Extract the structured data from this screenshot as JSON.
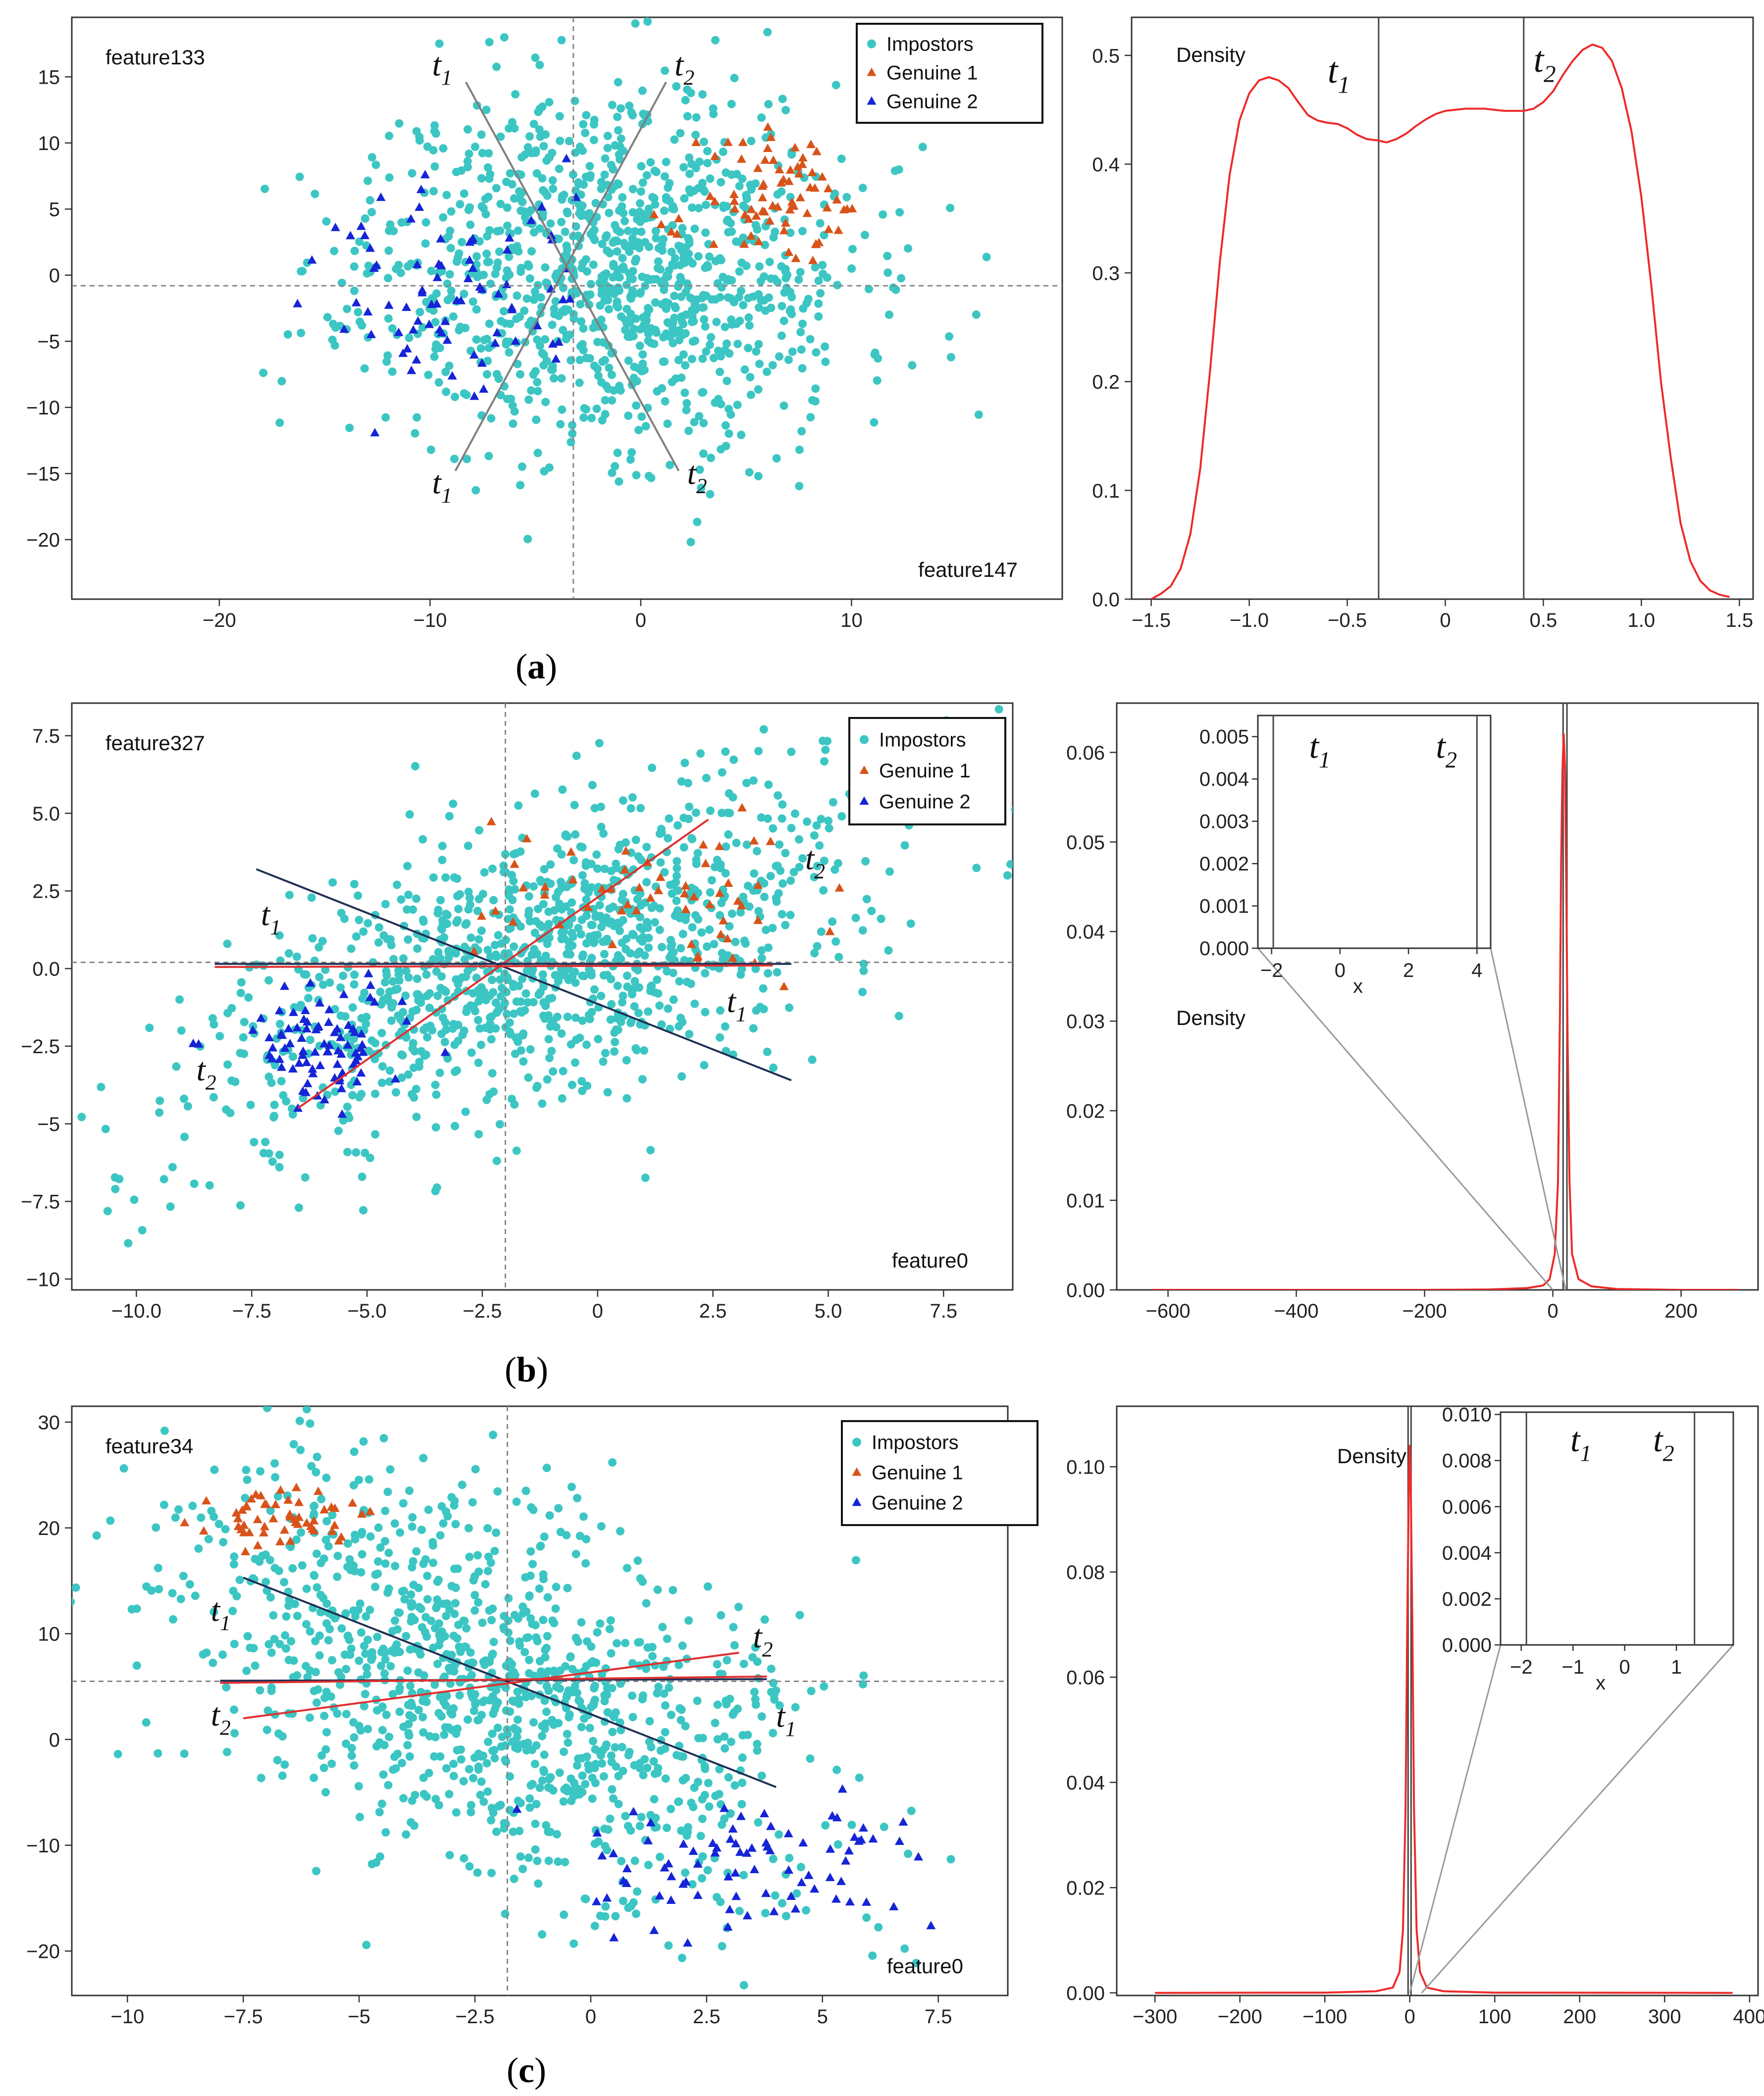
{
  "chart_data": [
    {
      "id": "a-scatter",
      "type": "scatter",
      "panel_label": "(a)",
      "xlim": [
        -27,
        20
      ],
      "ylim": [
        -24.5,
        19.5
      ],
      "xticks": [
        "−20",
        "−10",
        "0",
        "10"
      ],
      "xtick_values": [
        -20,
        -10,
        0,
        10
      ],
      "yticks": [
        "15",
        "10",
        "5",
        "0",
        "−5",
        "−10",
        "−15",
        "−20"
      ],
      "ytick_values": [
        15,
        10,
        5,
        0,
        -5,
        -10,
        -15,
        -20
      ],
      "feature_y": "feature133",
      "feature_x": "feature147",
      "center": [
        -3.2,
        -0.8
      ],
      "legend": [
        "Impostors",
        "Genuine 1",
        "Genuine 2"
      ],
      "cloud": {
        "cx": -1.5,
        "cy": 0.5,
        "sx": 5.8,
        "sy": 6.8,
        "rho": 0,
        "n": 1150,
        "seed": 11
      },
      "genuine1": {
        "cx": 6.8,
        "cy": 5.5,
        "sx": 2.0,
        "sy": 2.6,
        "n": 75,
        "seed": 21
      },
      "genuine2": {
        "cx": -9.0,
        "cy": -1.5,
        "sx": 3.4,
        "sy": 4.2,
        "n": 80,
        "seed": 31
      },
      "lines": [
        {
          "from": [
            -8.3,
            14.6
          ],
          "to": [
            1.8,
            -14.8
          ],
          "color": "#7f7f7f"
        },
        {
          "from": [
            -8.8,
            -14.8
          ],
          "to": [
            1.2,
            14.6
          ],
          "color": "#7f7f7f"
        }
      ],
      "threshold_labels": [
        {
          "sym": "t",
          "sub": "1",
          "x": -9.9,
          "y": 15.1
        },
        {
          "sym": "t",
          "sub": "2",
          "x": 1.6,
          "y": 15.1
        },
        {
          "sym": "t",
          "sub": "1",
          "x": -9.9,
          "y": -16.5
        },
        {
          "sym": "t",
          "sub": "2",
          "x": 2.2,
          "y": -15.8
        }
      ]
    },
    {
      "id": "a-density",
      "type": "line",
      "ylabel": "Density",
      "xlim": [
        -1.6,
        1.57
      ],
      "ylim": [
        0,
        0.535
      ],
      "xticks": [
        "−1.5",
        "−1.0",
        "−0.5",
        "0",
        "0.5",
        "1.0",
        "1.5"
      ],
      "xtick_values": [
        -1.5,
        -1.0,
        -0.5,
        0,
        0.5,
        1.0,
        1.5
      ],
      "yticks": [
        "0.0",
        "0.1",
        "0.2",
        "0.3",
        "0.4",
        "0.5"
      ],
      "ytick_values": [
        0,
        0.1,
        0.2,
        0.3,
        0.4,
        0.5
      ],
      "vlines": [
        -0.34,
        0.4
      ],
      "threshold_labels": [
        {
          "sym": "t",
          "sub": "1",
          "x": -0.6,
          "y": 0.475
        },
        {
          "sym": "t",
          "sub": "2",
          "x": 0.45,
          "y": 0.485
        }
      ],
      "curve": {
        "x": [
          -1.5,
          -1.45,
          -1.4,
          -1.35,
          -1.3,
          -1.25,
          -1.2,
          -1.15,
          -1.1,
          -1.05,
          -1.0,
          -0.95,
          -0.9,
          -0.85,
          -0.8,
          -0.75,
          -0.7,
          -0.65,
          -0.6,
          -0.55,
          -0.5,
          -0.45,
          -0.4,
          -0.35,
          -0.3,
          -0.25,
          -0.2,
          -0.15,
          -0.1,
          -0.05,
          0.0,
          0.05,
          0.1,
          0.15,
          0.2,
          0.25,
          0.3,
          0.35,
          0.4,
          0.45,
          0.5,
          0.55,
          0.6,
          0.65,
          0.7,
          0.75,
          0.8,
          0.85,
          0.9,
          0.95,
          1.0,
          1.05,
          1.1,
          1.15,
          1.2,
          1.25,
          1.3,
          1.35,
          1.4,
          1.45
        ],
        "y": [
          0.0,
          0.005,
          0.012,
          0.028,
          0.06,
          0.12,
          0.21,
          0.31,
          0.39,
          0.44,
          0.465,
          0.477,
          0.48,
          0.477,
          0.47,
          0.457,
          0.445,
          0.44,
          0.438,
          0.437,
          0.433,
          0.427,
          0.423,
          0.422,
          0.42,
          0.423,
          0.428,
          0.435,
          0.441,
          0.446,
          0.449,
          0.45,
          0.451,
          0.451,
          0.451,
          0.45,
          0.449,
          0.449,
          0.449,
          0.451,
          0.457,
          0.467,
          0.482,
          0.495,
          0.505,
          0.51,
          0.507,
          0.495,
          0.47,
          0.43,
          0.37,
          0.29,
          0.2,
          0.13,
          0.07,
          0.035,
          0.017,
          0.008,
          0.004,
          0.002
        ]
      }
    },
    {
      "id": "b-scatter",
      "type": "scatter",
      "panel_label": "(b)",
      "xlim": [
        -11.4,
        9.0
      ],
      "ylim": [
        -10.35,
        8.55
      ],
      "xticks": [
        "−10.0",
        "−7.5",
        "−5.0",
        "−2.5",
        "0",
        "2.5",
        "5.0",
        "7.5"
      ],
      "xtick_values": [
        -10,
        -7.5,
        -5,
        -2.5,
        0,
        2.5,
        5,
        7.5
      ],
      "yticks": [
        "7.5",
        "5.0",
        "2.5",
        "0.0",
        "−2.5",
        "−5",
        "−7.5",
        "−10"
      ],
      "ytick_values": [
        7.5,
        5,
        2.5,
        0,
        -2.5,
        -5,
        -7.5,
        -10
      ],
      "feature_y": "feature327",
      "feature_x": "feature0",
      "center": [
        -2.0,
        0.2
      ],
      "legend": [
        "Impostors",
        "Genuine 1",
        "Genuine 2"
      ],
      "cloud": {
        "cx": -1.2,
        "cy": 0.2,
        "sx": 3.6,
        "sy": 3.0,
        "rho": 0.62,
        "n": 1150,
        "seed": 12
      },
      "genuine1": {
        "cx": 1.0,
        "cy": 2.4,
        "sx": 1.9,
        "sy": 1.1,
        "n": 55,
        "seed": 22
      },
      "genuine2": {
        "cx": -6.0,
        "cy": -2.4,
        "sx": 1.0,
        "sy": 0.95,
        "n": 85,
        "seed": 32
      },
      "lines": [
        {
          "from": [
            -7.4,
            3.2
          ],
          "to": [
            4.2,
            -3.6
          ],
          "color": "#1f2f55"
        },
        {
          "from": [
            -6.5,
            -4.5
          ],
          "to": [
            2.4,
            4.8
          ],
          "color": "#e03030"
        },
        {
          "from": [
            -8.3,
            0.15
          ],
          "to": [
            4.2,
            0.15
          ],
          "color": "#1f2f55"
        },
        {
          "from": [
            -8.3,
            0.05
          ],
          "to": [
            3.8,
            0.1
          ],
          "color": "#e03030"
        }
      ],
      "threshold_labels": [
        {
          "sym": "t",
          "sub": "1",
          "x": -7.3,
          "y": 1.4
        },
        {
          "sym": "t",
          "sub": "2",
          "x": 4.5,
          "y": 3.2
        },
        {
          "sym": "t",
          "sub": "1",
          "x": 2.8,
          "y": -1.4
        },
        {
          "sym": "t",
          "sub": "2",
          "x": -8.7,
          "y": -3.6
        }
      ]
    },
    {
      "id": "b-density",
      "type": "line",
      "ylabel": "Density",
      "xlim": [
        -680,
        320
      ],
      "ylim": [
        0,
        0.0655
      ],
      "xticks": [
        "−600",
        "−400",
        "−200",
        "0",
        "200"
      ],
      "xtick_values": [
        -600,
        -400,
        -200,
        0,
        200
      ],
      "yticks": [
        "0.00",
        "0.01",
        "0.02",
        "0.03",
        "0.04",
        "0.05",
        "0.06"
      ],
      "ytick_values": [
        0,
        0.01,
        0.02,
        0.03,
        0.04,
        0.05,
        0.06
      ],
      "vlines": [
        16,
        22
      ],
      "curve": {
        "x": [
          -625,
          -200,
          -100,
          -40,
          -15,
          -5,
          3,
          8,
          11,
          13,
          15,
          17,
          19,
          21,
          23,
          26,
          30,
          40,
          60,
          100,
          200,
          290
        ],
        "y": [
          0,
          0,
          5e-05,
          0.0002,
          0.0005,
          0.0012,
          0.004,
          0.012,
          0.03,
          0.048,
          0.058,
          0.062,
          0.058,
          0.045,
          0.028,
          0.012,
          0.004,
          0.0012,
          0.0004,
          0.0001,
          0,
          0
        ]
      },
      "inset": {
        "xlim": [
          -2.4,
          4.4
        ],
        "ylim": [
          0,
          0.0055
        ],
        "xticks": [
          "−2",
          "0",
          "2",
          "4"
        ],
        "xtick_values": [
          -2,
          0,
          2,
          4
        ],
        "yticks": [
          "0.000",
          "0.001",
          "0.002",
          "0.003",
          "0.004",
          "0.005"
        ],
        "ytick_values": [
          0,
          0.001,
          0.002,
          0.003,
          0.004,
          0.005
        ],
        "xlabel": "x",
        "vlines": [
          -1.95,
          4.0
        ],
        "threshold_labels": [
          {
            "sym": "t",
            "sub": "1",
            "x": -0.9,
            "y": 0.0045
          },
          {
            "sym": "t",
            "sub": "2",
            "x": 2.8,
            "y": 0.0045
          }
        ]
      }
    },
    {
      "id": "c-scatter",
      "type": "scatter",
      "panel_label": "(c)",
      "xlim": [
        -11.2,
        9.0
      ],
      "ylim": [
        -24.2,
        31.5
      ],
      "xticks": [
        "−10",
        "−7.5",
        "−5",
        "−2.5",
        "0",
        "2.5",
        "5",
        "7.5"
      ],
      "xtick_values": [
        -10,
        -7.5,
        -5,
        -2.5,
        0,
        2.5,
        5,
        7.5
      ],
      "yticks": [
        "30",
        "20",
        "10",
        "0",
        "−10",
        "−20"
      ],
      "ytick_values": [
        30,
        20,
        10,
        0,
        -10,
        -20
      ],
      "feature_y": "feature34",
      "feature_x": "feature0",
      "center": [
        -1.8,
        5.5
      ],
      "legend": [
        "Impostors",
        "Genuine 1",
        "Genuine 2"
      ],
      "cloud": {
        "cx": -2.0,
        "cy": 5.0,
        "sx": 3.5,
        "sy": 10.0,
        "rho": -0.5,
        "n": 1150,
        "seed": 13
      },
      "genuine1": {
        "cx": -6.6,
        "cy": 20.8,
        "sx": 0.8,
        "sy": 1.2,
        "n": 55,
        "seed": 23
      },
      "genuine2": {
        "cx": 3.4,
        "cy": -12.5,
        "sx": 1.7,
        "sy": 3.0,
        "n": 80,
        "seed": 33
      },
      "lines": [
        {
          "from": [
            -7.5,
            15.3
          ],
          "to": [
            4.0,
            -4.5
          ],
          "color": "#1f2f55"
        },
        {
          "from": [
            -7.5,
            2.0
          ],
          "to": [
            3.2,
            8.2
          ],
          "color": "#e03030"
        },
        {
          "from": [
            -8.0,
            5.55
          ],
          "to": [
            3.8,
            5.7
          ],
          "color": "#1f2f55"
        },
        {
          "from": [
            -8.0,
            5.35
          ],
          "to": [
            3.8,
            5.95
          ],
          "color": "#e03030"
        }
      ],
      "threshold_labels": [
        {
          "sym": "t",
          "sub": "1",
          "x": -8.2,
          "y": 11.2
        },
        {
          "sym": "t",
          "sub": "2",
          "x": 3.5,
          "y": 8.7
        },
        {
          "sym": "t",
          "sub": "1",
          "x": 4.0,
          "y": 1.2
        },
        {
          "sym": "t",
          "sub": "2",
          "x": -8.2,
          "y": 1.3
        }
      ]
    },
    {
      "id": "c-density",
      "type": "line",
      "ylabel": "Density",
      "xlim": [
        -345,
        410
      ],
      "ylim": [
        -0.0005,
        0.1115
      ],
      "xticks": [
        "−300",
        "−200",
        "−100",
        "0",
        "100",
        "200",
        "300",
        "400"
      ],
      "xtick_values": [
        -300,
        -200,
        -100,
        0,
        100,
        200,
        300,
        400
      ],
      "yticks": [
        "0.00",
        "0.02",
        "0.04",
        "0.06",
        "0.08",
        "0.10"
      ],
      "ytick_values": [
        0,
        0.02,
        0.04,
        0.06,
        0.08,
        0.1
      ],
      "vlines": [
        -2,
        1.5
      ],
      "curve": {
        "x": [
          -300,
          -100,
          -40,
          -20,
          -12,
          -8,
          -5,
          -3,
          -1,
          0,
          1,
          3,
          5,
          8,
          12,
          20,
          40,
          100,
          380
        ],
        "y": [
          0,
          5e-05,
          0.0003,
          0.001,
          0.004,
          0.012,
          0.035,
          0.07,
          0.098,
          0.104,
          0.098,
          0.07,
          0.035,
          0.012,
          0.004,
          0.001,
          0.0003,
          5e-05,
          0
        ]
      },
      "inset": {
        "xlim": [
          -2.4,
          2.1
        ],
        "ylim": [
          0,
          0.0101
        ],
        "xticks": [
          "−2",
          "−1",
          "0",
          "1"
        ],
        "xtick_values": [
          -2,
          -1,
          0,
          1
        ],
        "yticks": [
          "0.000",
          "0.002",
          "0.004",
          "0.006",
          "0.008",
          "0.010"
        ],
        "ytick_values": [
          0,
          0.002,
          0.004,
          0.006,
          0.008,
          0.01
        ],
        "xlabel": "x",
        "vlines": [
          -1.9,
          1.35
        ],
        "threshold_labels": [
          {
            "sym": "t",
            "sub": "1",
            "x": -1.05,
            "y": 0.0084
          },
          {
            "sym": "t",
            "sub": "2",
            "x": 0.55,
            "y": 0.0084
          }
        ]
      }
    }
  ]
}
